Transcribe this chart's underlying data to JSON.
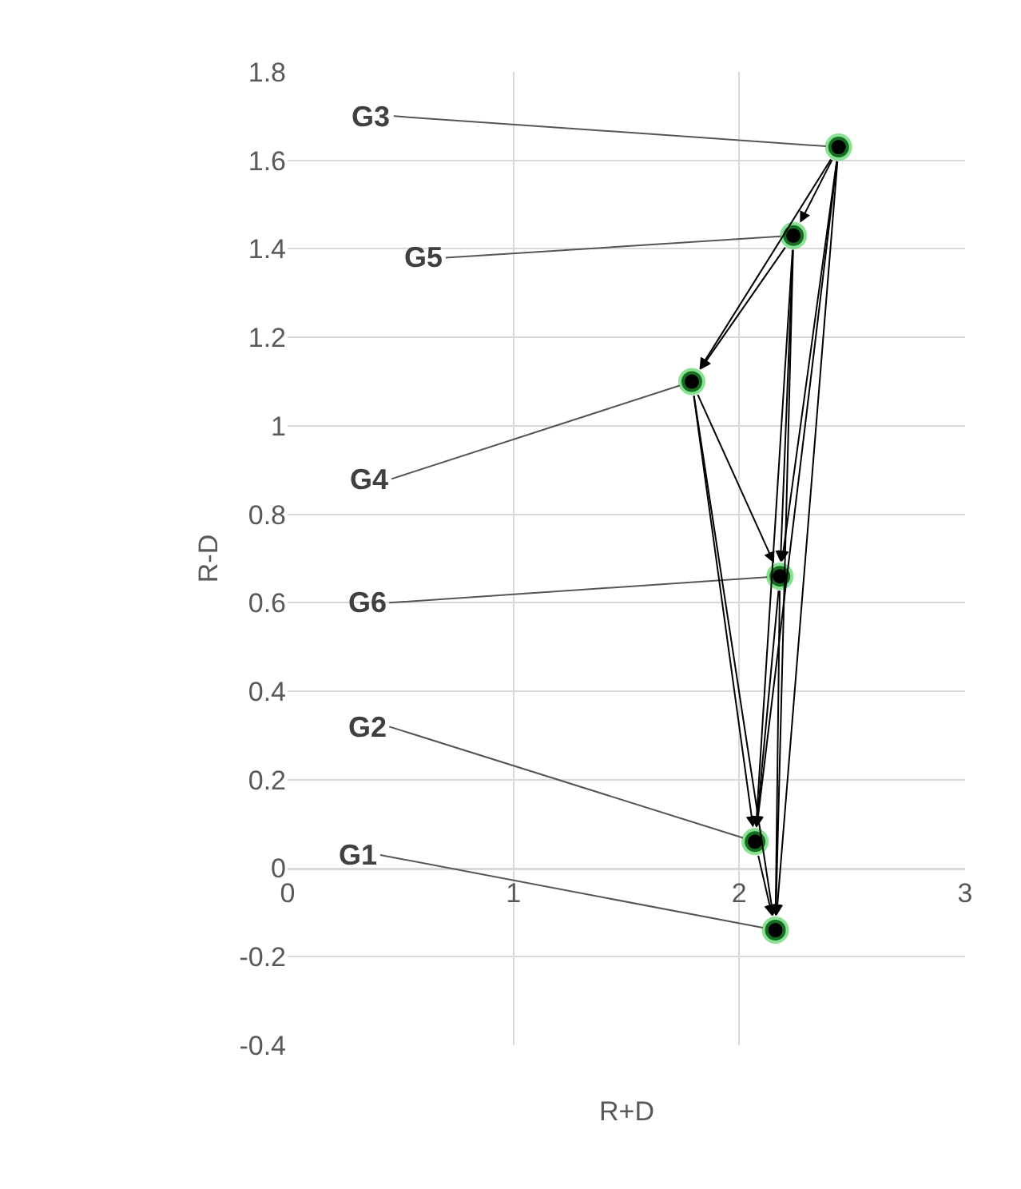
{
  "chart_data": {
    "type": "scatter",
    "xlabel": "R+D",
    "ylabel": "R-D",
    "x": [
      2.16,
      2.07,
      2.44,
      1.79,
      2.24,
      2.18
    ],
    "series": [
      {
        "color": "#000000",
        "values": [
          -0.14,
          0.06,
          1.63,
          1.1,
          1.43,
          0.66
        ]
      }
    ],
    "xlim": [
      0,
      3
    ],
    "xticks": [
      0,
      1,
      2,
      3
    ],
    "ylim": [
      -0.4,
      1.8
    ],
    "yticks": [
      -0.4,
      -0.2,
      0,
      0.2,
      0.4,
      0.6,
      0.8,
      1,
      1.2,
      1.4,
      1.6,
      1.8
    ],
    "grid": true,
    "marker": "circle",
    "annotations": [
      {
        "text": "G1",
        "x": 2.16,
        "y": -0.14
      },
      {
        "text": "G2",
        "x": 2.07,
        "y": 0.06
      },
      {
        "text": "G3",
        "x": 2.44,
        "y": 1.63
      },
      {
        "text": "G4",
        "x": 1.79,
        "y": 1.1
      },
      {
        "text": "G5",
        "x": 2.24,
        "y": 1.43
      },
      {
        "text": "G6",
        "x": 2.18,
        "y": 0.66
      }
    ]
  }
}
